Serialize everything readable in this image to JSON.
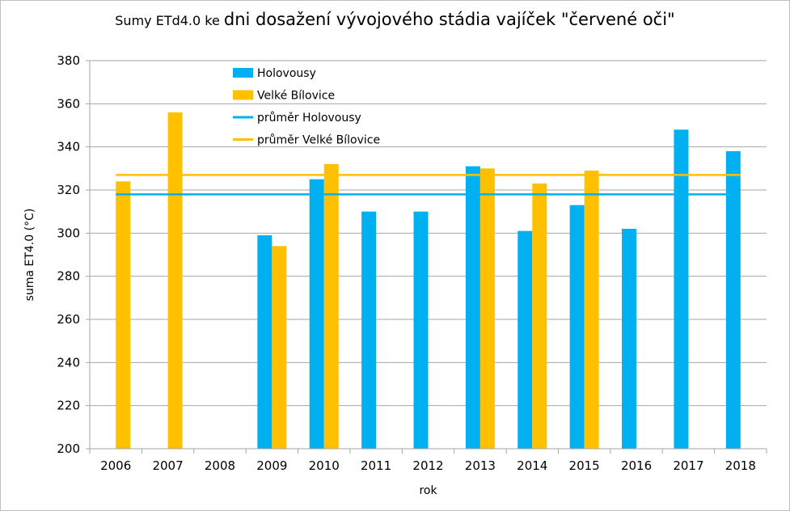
{
  "chart_title_part1": "Sumy ETd4.0 ke",
  "chart_title_part2": "dni dosažení vývojového stádia vajíček \"červené oči\"",
  "chart_data": {
    "type": "bar",
    "title": "Sumy ETd4.0 ke dni dosažení vývojového stádia vajíček \"červené oči\"",
    "xlabel": "rok",
    "ylabel": "suma ET4.0 (°C)",
    "ylim": [
      200,
      380
    ],
    "ytick_step": 20,
    "grid": true,
    "legend_position": "top-left",
    "categories": [
      "2006",
      "2007",
      "2008",
      "2009",
      "2010",
      "2011",
      "2012",
      "2013",
      "2014",
      "2015",
      "2016",
      "2017",
      "2018"
    ],
    "series": [
      {
        "name": "Holovousy",
        "color": "#00b0f0",
        "values": [
          null,
          null,
          null,
          299,
          325,
          310,
          310,
          331,
          301,
          313,
          302,
          348,
          338
        ]
      },
      {
        "name": "Velké Bílovice",
        "color": "#ffc000",
        "values": [
          324,
          356,
          null,
          294,
          332,
          null,
          null,
          330,
          323,
          329,
          null,
          null,
          null
        ]
      }
    ],
    "lines": [
      {
        "name": "průměr Holovousy",
        "color": "#00b0f0",
        "value": 318
      },
      {
        "name": "průměr Velké Bílovice",
        "color": "#ffc000",
        "value": 327
      }
    ]
  }
}
